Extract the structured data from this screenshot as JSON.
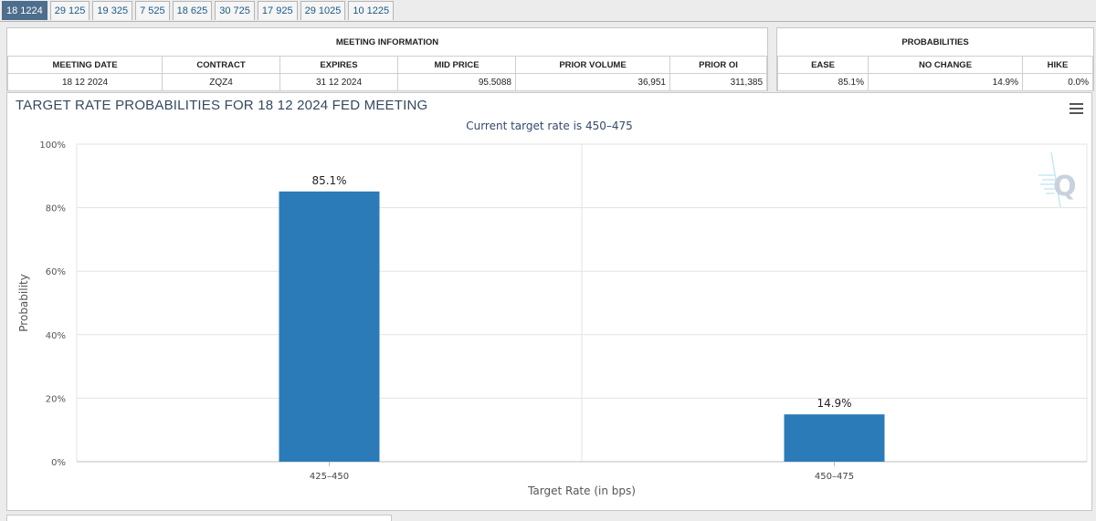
{
  "tabs": [
    "18 1224",
    "29 125",
    "19 325",
    "7 525",
    "18 625",
    "30 725",
    "17 925",
    "29 1025",
    "10 1225"
  ],
  "meeting_info": {
    "title": "MEETING INFORMATION",
    "headers": [
      "MEETING DATE",
      "CONTRACT",
      "EXPIRES",
      "MID PRICE",
      "PRIOR VOLUME",
      "PRIOR OI"
    ],
    "values": [
      "18 12 2024",
      "ZQZ4",
      "31 12 2024",
      "95.5088",
      "36,951",
      "311,385"
    ]
  },
  "probabilities": {
    "title": "PROBABILITIES",
    "headers": [
      "EASE",
      "NO CHANGE",
      "HIKE"
    ],
    "values": [
      "85.1%",
      "14.9%",
      "0.0%"
    ]
  },
  "chart_data": {
    "type": "bar",
    "title": "TARGET RATE PROBABILITIES FOR 18 12 2024 FED MEETING",
    "subtitle": "Current target rate is 450–475",
    "categories": [
      "425–450",
      "450–475"
    ],
    "values": [
      85.1,
      14.9
    ],
    "data_labels": [
      "85.1%",
      "14.9%"
    ],
    "xlabel": "Target Rate (in bps)",
    "ylabel": "Probability",
    "ylim": [
      0,
      100
    ],
    "yticks": [
      0,
      20,
      40,
      60,
      80,
      100
    ],
    "ytick_labels": [
      "0%",
      "20%",
      "40%",
      "60%",
      "80%",
      "100%"
    ],
    "grid": true,
    "bar_color": "#2b7bb9"
  },
  "icons": {
    "menu": "hamburger-menu-icon",
    "logo": "q-logo-icon"
  }
}
